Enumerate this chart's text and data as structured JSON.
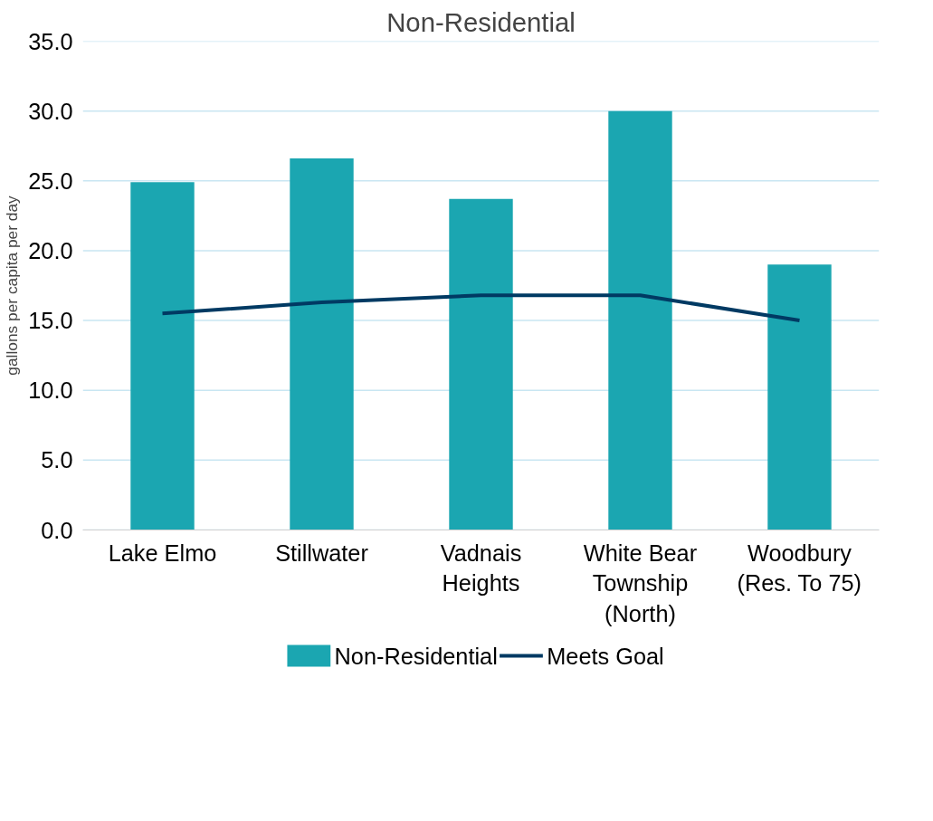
{
  "chart_data": {
    "type": "bar",
    "title": "Non-Residential",
    "ylabel": "gallons per capita per day",
    "categories": [
      "Lake Elmo",
      "Stillwater",
      "Vadnais Heights",
      "White Bear Township (North)",
      "Woodbury (Res. To 75)"
    ],
    "series": [
      {
        "name": "Non-Residential",
        "color": "#1ba6b1",
        "values": [
          24.9,
          26.6,
          23.7,
          30.0,
          19.0
        ]
      },
      {
        "name": "Meets Goal",
        "type": "line",
        "color": "#003a63",
        "values": [
          15.5,
          16.3,
          16.8,
          16.8,
          15.0
        ]
      }
    ],
    "ylim": [
      0,
      35
    ],
    "yticks": [
      {
        "value": 0,
        "label": "0.0"
      },
      {
        "value": 5,
        "label": "5.0"
      },
      {
        "value": 10,
        "label": "10.0"
      },
      {
        "value": 15,
        "label": "15.0"
      },
      {
        "value": 20,
        "label": "20.0"
      },
      {
        "value": 25,
        "label": "25.0"
      },
      {
        "value": 30,
        "label": "30.0"
      },
      {
        "value": 35,
        "label": "35.0"
      }
    ],
    "grid": "y",
    "legend": "bottom",
    "marker": "none",
    "line_style": "solid"
  }
}
